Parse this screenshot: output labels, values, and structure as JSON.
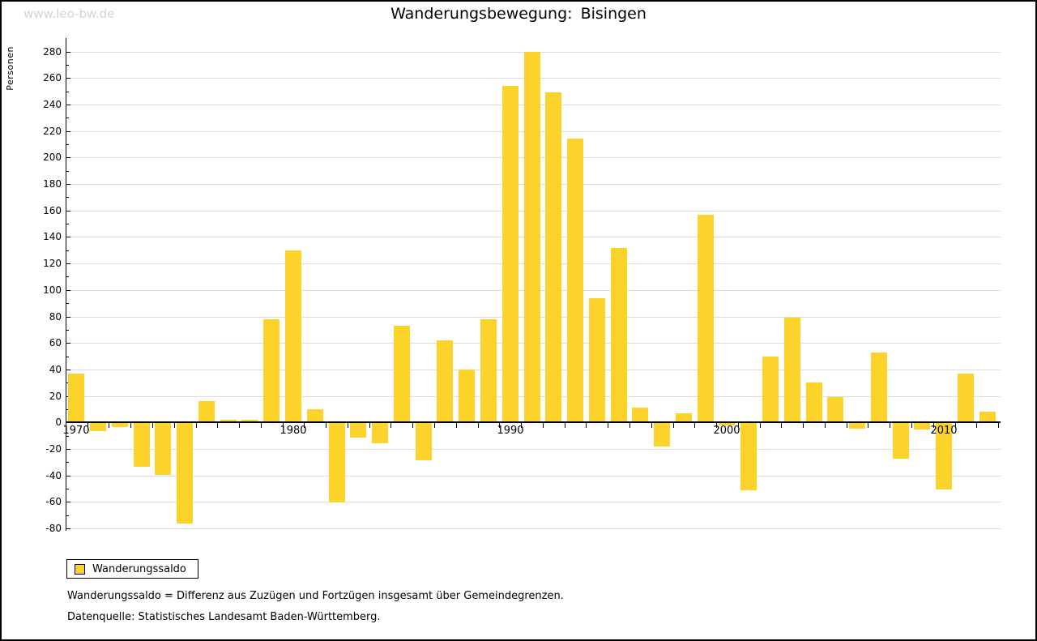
{
  "watermark": "www.leo-bw.de",
  "header": {
    "title": "Wanderungsbewegung: Bisingen"
  },
  "legend": {
    "label": "Wanderungssaldo"
  },
  "footnotes": {
    "definition": "Wanderungssaldo = Differenz aus Zuzügen und Fortzügen insgesamt über Gemeindegrenzen.",
    "source": "Datenquelle: Statistisches Landesamt Baden-Württemberg."
  },
  "colors": {
    "bar": "#fcd32b",
    "gridline": "#dcdcdc",
    "axis": "#000000",
    "watermark": "#d3d3d3"
  },
  "chart_data": {
    "type": "bar",
    "title": "Wanderungsbewegung: Bisingen",
    "xlabel": "",
    "ylabel": "Personen",
    "series_name": "Wanderungssaldo",
    "x": [
      1970,
      1971,
      1972,
      1973,
      1974,
      1975,
      1976,
      1977,
      1978,
      1979,
      1980,
      1981,
      1982,
      1983,
      1984,
      1985,
      1986,
      1987,
      1988,
      1989,
      1990,
      1991,
      1992,
      1993,
      1994,
      1995,
      1996,
      1997,
      1998,
      1999,
      2000,
      2001,
      2002,
      2003,
      2004,
      2005,
      2006,
      2007,
      2008,
      2009,
      2010,
      2011,
      2012
    ],
    "values": [
      37,
      -6,
      -3,
      -33,
      -39,
      -76,
      16,
      2,
      2,
      78,
      130,
      10,
      -60,
      -11,
      -15,
      73,
      -28,
      62,
      40,
      78,
      254,
      280,
      249,
      214,
      94,
      132,
      11,
      -18,
      7,
      157,
      -2,
      -51,
      50,
      79,
      30,
      19,
      -4,
      53,
      -27,
      -5,
      -50,
      37,
      8
    ],
    "ylim": [
      -80,
      280
    ],
    "ytick_step": 20,
    "ytick_minor_step": 10,
    "xtick_labels": [
      "1970",
      "1980",
      "1990",
      "2000",
      "2010"
    ],
    "xtick_label_years": [
      1970,
      1980,
      1990,
      2000,
      2010
    ],
    "grid": true,
    "legend_position": "bottom-left"
  }
}
